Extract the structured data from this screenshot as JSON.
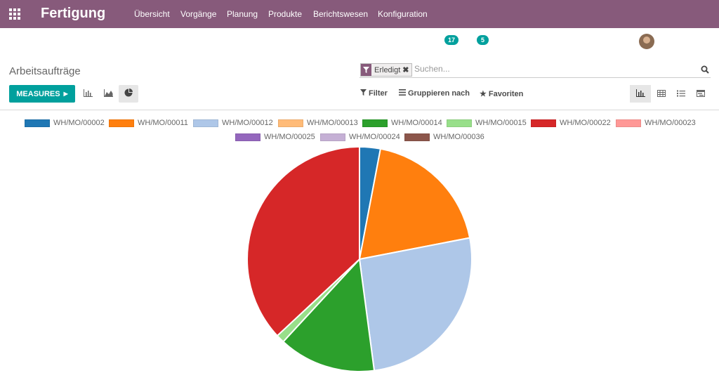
{
  "navbar": {
    "brand": "Fertigung",
    "menu": [
      {
        "label": "Übersicht"
      },
      {
        "label": "Vorgänge"
      },
      {
        "label": "Planung"
      },
      {
        "label": "Produkte"
      },
      {
        "label": "Berichtswesen"
      },
      {
        "label": "Konfiguration"
      }
    ],
    "badges": [
      {
        "value": "17"
      },
      {
        "value": "5"
      }
    ]
  },
  "page": {
    "title": "Arbeitsaufträge"
  },
  "search": {
    "facet_label": "Erledigt",
    "placeholder": "Suchen..."
  },
  "toolbar": {
    "measures_label": "MEASURES",
    "filter_label": "Filter",
    "group_label": "Gruppieren nach",
    "favorites_label": "Favoriten"
  },
  "colors": {
    "brand": "#875a7b",
    "accent": "#00a09d"
  },
  "chart_data": {
    "type": "pie",
    "categories": [
      "WH/MO/00002",
      "WH/MO/00011",
      "WH/MO/00012",
      "WH/MO/00013",
      "WH/MO/00014",
      "WH/MO/00015",
      "WH/MO/00022",
      "WH/MO/00023",
      "WH/MO/00025",
      "WH/MO/00024",
      "WH/MO/00036"
    ],
    "values": [
      3,
      19,
      26,
      0,
      14,
      1.2,
      37,
      0,
      0,
      0,
      0
    ],
    "colors": [
      "#1f77b4",
      "#ff7f0e",
      "#aec7e8",
      "#ffbb78",
      "#2ca02c",
      "#98df8a",
      "#d62728",
      "#ff9896",
      "#9467bd",
      "#c5b0d5",
      "#8c564b"
    ],
    "legend": "top"
  }
}
